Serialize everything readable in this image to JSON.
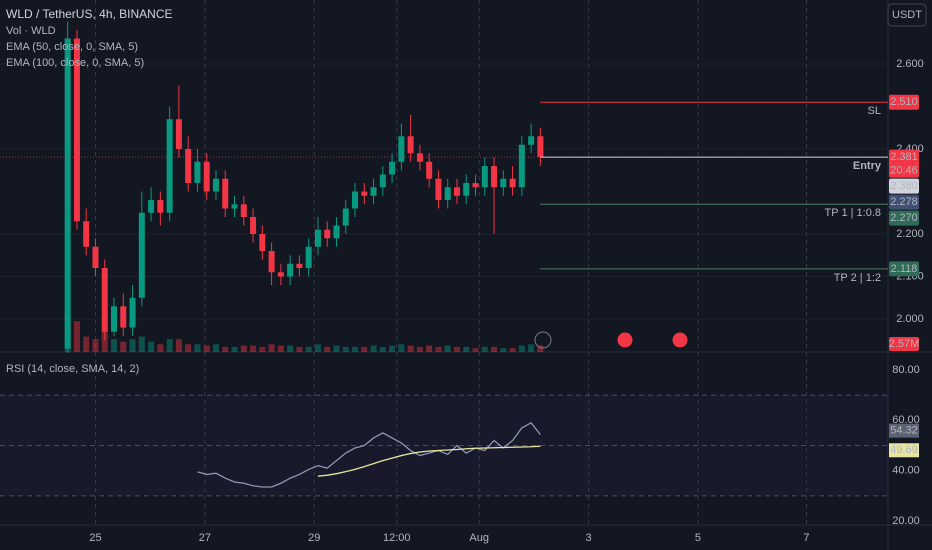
{
  "header": {
    "symbol": "WLD / TetherUS, 4h, BINANCE",
    "indicators": [
      "Vol · WLD",
      "EMA (50, close, 0, SMA, 5)",
      "EMA (100, close, 0, SMA, 5)"
    ],
    "currency": "USDT"
  },
  "chart_data": {
    "type": "candlestick",
    "open": [
      1.93,
      2.66,
      2.23,
      2.17,
      2.12,
      1.97,
      2.03,
      1.98,
      2.05,
      2.25,
      2.28,
      2.25,
      2.47,
      2.4,
      2.32,
      2.37,
      2.3,
      2.33,
      2.26,
      2.27,
      2.24,
      2.2,
      2.16,
      2.11,
      2.1,
      2.13,
      2.12,
      2.17,
      2.21,
      2.19,
      2.22,
      2.26,
      2.3,
      2.29,
      2.31,
      2.34,
      2.37,
      2.43,
      2.39,
      2.37,
      2.33,
      2.28,
      2.31,
      2.29,
      2.32,
      2.31,
      2.36,
      2.31,
      2.33,
      2.31,
      2.41,
      2.43
    ],
    "high": [
      2.7,
      2.68,
      2.26,
      2.19,
      2.14,
      2.05,
      2.06,
      2.08,
      2.3,
      2.31,
      2.3,
      2.5,
      2.55,
      2.43,
      2.4,
      2.39,
      2.35,
      2.35,
      2.29,
      2.29,
      2.26,
      2.22,
      2.18,
      2.13,
      2.15,
      2.15,
      2.19,
      2.24,
      2.23,
      2.24,
      2.28,
      2.32,
      2.32,
      2.33,
      2.36,
      2.39,
      2.46,
      2.48,
      2.41,
      2.39,
      2.35,
      2.33,
      2.33,
      2.34,
      2.34,
      2.38,
      2.38,
      2.35,
      2.36,
      2.43,
      2.46,
      2.45
    ],
    "low": [
      1.92,
      2.21,
      2.15,
      2.1,
      1.95,
      1.96,
      1.96,
      1.96,
      2.03,
      2.23,
      2.22,
      2.23,
      2.38,
      2.3,
      2.3,
      2.28,
      2.28,
      2.24,
      2.24,
      2.22,
      2.18,
      2.14,
      2.08,
      2.08,
      2.08,
      2.1,
      2.1,
      2.15,
      2.17,
      2.17,
      2.2,
      2.24,
      2.27,
      2.27,
      2.29,
      2.32,
      2.35,
      2.37,
      2.35,
      2.31,
      2.26,
      2.26,
      2.27,
      2.27,
      2.29,
      2.29,
      2.2,
      2.29,
      2.29,
      2.29,
      2.39,
      2.36
    ],
    "close": [
      2.66,
      2.23,
      2.17,
      2.12,
      1.97,
      2.03,
      1.98,
      2.05,
      2.25,
      2.28,
      2.25,
      2.47,
      2.4,
      2.32,
      2.37,
      2.3,
      2.33,
      2.26,
      2.27,
      2.24,
      2.2,
      2.16,
      2.11,
      2.1,
      2.13,
      2.12,
      2.17,
      2.21,
      2.19,
      2.22,
      2.26,
      2.3,
      2.29,
      2.31,
      2.34,
      2.37,
      2.43,
      2.39,
      2.37,
      2.33,
      2.28,
      2.31,
      2.29,
      2.32,
      2.31,
      2.36,
      2.31,
      2.33,
      2.31,
      2.41,
      2.43,
      2.381
    ],
    "volume": [
      14,
      12,
      6,
      5,
      9,
      5,
      4,
      5,
      6,
      4,
      3,
      5,
      5,
      3,
      3,
      2.5,
      3,
      2,
      2,
      2.5,
      2.5,
      2,
      3,
      2.5,
      2.5,
      2,
      2,
      3,
      2,
      2.5,
      2,
      2,
      2,
      2.5,
      2,
      2.5,
      3,
      2.5,
      2,
      2.5,
      2,
      2.5,
      2,
      2,
      1.5,
      2,
      2,
      1.5,
      1.5,
      2.5,
      3,
      2.57
    ],
    "volume_last_label": "2.57M",
    "up_color": "#089981",
    "down_color": "#f23645",
    "xlim": [
      -7.3,
      88.5
    ],
    "ylim": [
      1.9224,
      2.7506
    ],
    "yticks": [
      {
        "value": 2.0,
        "label": "2.000"
      },
      {
        "value": 2.1,
        "label": "2.100"
      },
      {
        "value": 2.2,
        "label": "2.200"
      },
      {
        "value": 2.4,
        "label": "2.400"
      },
      {
        "value": 2.6,
        "label": "2.600"
      }
    ],
    "xticks": [
      {
        "value": 3,
        "label": "25"
      },
      {
        "value": 14.8,
        "label": "27"
      },
      {
        "value": 26.6,
        "label": "29"
      },
      {
        "value": 35.5,
        "label": "12:00"
      },
      {
        "value": 44.4,
        "label": "Aug"
      },
      {
        "value": 56.2,
        "label": "3"
      },
      {
        "value": 68,
        "label": "5"
      },
      {
        "value": 79.7,
        "label": "7"
      }
    ],
    "countdown": "20:46",
    "levels": [
      {
        "text": "SL",
        "value": 2.51,
        "label": "2.510",
        "color": "#f23645",
        "line_color": "#f23645"
      },
      {
        "text": "Entry",
        "value": 2.381,
        "label": "2.381",
        "color": "#f23645",
        "line_color": "#d1d4dc"
      },
      {
        "text": "TP 1 | 1:0.8",
        "value": 2.27,
        "label": "2.270",
        "color": "#2f6b57",
        "line_color": "#4f7f66"
      },
      {
        "text": "TP 2 | 1:2",
        "value": 2.118,
        "label": "2.118",
        "color": "#2f6b57",
        "line_color": "#4f7f66"
      }
    ],
    "price_labels": [
      {
        "value": 2.38,
        "label": "2.380",
        "color": "#d1d4dc"
      },
      {
        "value": 2.278,
        "label": "2.278",
        "color": "#3f5173"
      }
    ],
    "rsi": {
      "title": "RSI (14, close, SMA, 14, 2)",
      "ylim": [
        18.41,
        87.15
      ],
      "yticks": [
        {
          "value": 20,
          "label": "20.00"
        },
        {
          "value": 40,
          "label": "40.00"
        },
        {
          "value": 60,
          "label": "60.00"
        },
        {
          "value": 80,
          "label": "80.00"
        }
      ],
      "bands": [
        70,
        50,
        30
      ],
      "series": [
        {
          "color": "#8c97b4",
          "values": [
            null,
            null,
            null,
            null,
            null,
            null,
            null,
            null,
            null,
            null,
            null,
            null,
            null,
            null,
            39.5,
            38.5,
            39,
            37,
            35.5,
            35,
            34,
            33.5,
            33.5,
            35,
            37,
            38.5,
            40.5,
            42,
            41,
            44,
            47,
            49,
            50,
            53,
            55,
            53,
            51,
            48,
            46,
            47,
            48,
            46.5,
            50,
            47,
            49,
            48,
            52,
            49,
            52,
            57,
            59,
            54.32
          ]
        },
        {
          "color": "#e6e6a0",
          "values": [
            null,
            null,
            null,
            null,
            null,
            null,
            null,
            null,
            null,
            null,
            null,
            null,
            null,
            null,
            null,
            null,
            null,
            null,
            null,
            null,
            null,
            null,
            null,
            null,
            null,
            null,
            null,
            37.8,
            38.2,
            38.8,
            39.6,
            40.5,
            41.6,
            42.8,
            44,
            45,
            46,
            46.8,
            47.4,
            47.8,
            48,
            48.2,
            48.4,
            48.7,
            48.9,
            49,
            49.1,
            49.2,
            49.3,
            49.4,
            49.5,
            49.69
          ]
        }
      ]
    }
  }
}
